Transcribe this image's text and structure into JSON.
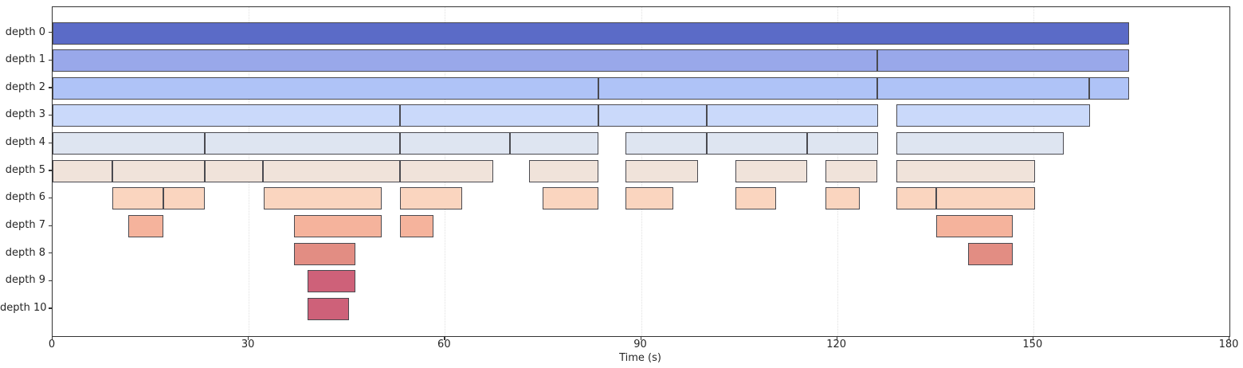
{
  "figure": {
    "background": "#ffffff",
    "spine_color": "#333333",
    "grid_color": "#e0e0e0",
    "bar_edge_color": "#4a4a50",
    "text_color": "#262626"
  },
  "chart_data": {
    "type": "bar",
    "subtype": "horizontal-span-flamegraph",
    "title": "",
    "xlabel": "Time (s)",
    "ylabel": "",
    "xlim": [
      0,
      180
    ],
    "x_ticks": [
      0,
      30,
      60,
      90,
      120,
      150,
      180
    ],
    "x_tick_labels": [
      "0",
      "30",
      "60",
      "90",
      "120",
      "150",
      "180"
    ],
    "grid": "faint dotted vertical gridlines at each x tick",
    "legend": "none",
    "categories": [
      "depth 0",
      "depth 1",
      "depth 2",
      "depth 3",
      "depth 4",
      "depth 5",
      "depth 6",
      "depth 7",
      "depth 8",
      "depth 9",
      "depth 10"
    ],
    "rows": [
      {
        "label": "depth 0",
        "color": "#5b6bc7",
        "segments": [
          [
            0,
            164.6
          ]
        ]
      },
      {
        "label": "depth 1",
        "color": "#99a8ea",
        "segments": [
          [
            0,
            126.1
          ],
          [
            126.1,
            164.6
          ]
        ]
      },
      {
        "label": "depth 2",
        "color": "#afc3f7",
        "segments": [
          [
            0,
            83.5
          ],
          [
            83.5,
            126.1
          ],
          [
            126.1,
            158.6
          ],
          [
            158.6,
            164.6
          ]
        ]
      },
      {
        "label": "depth 3",
        "color": "#cad9fa",
        "segments": [
          [
            0,
            53.1
          ],
          [
            53.1,
            83.5
          ],
          [
            83.5,
            100.1
          ],
          [
            100.1,
            126.2
          ],
          [
            129.0,
            158.7
          ]
        ]
      },
      {
        "label": "depth 4",
        "color": "#dee5f1",
        "segments": [
          [
            0,
            23.3
          ],
          [
            23.3,
            53.1
          ],
          [
            53.1,
            69.9
          ],
          [
            69.9,
            83.5
          ],
          [
            87.6,
            100.1
          ],
          [
            100.1,
            115.4
          ],
          [
            115.4,
            126.2
          ],
          [
            129.0,
            154.7
          ]
        ]
      },
      {
        "label": "depth 5",
        "color": "#f0e3da",
        "segments": [
          [
            0,
            9.1
          ],
          [
            9.1,
            23.3
          ],
          [
            23.3,
            32.2
          ],
          [
            32.2,
            53.1
          ],
          [
            53.1,
            67.4
          ],
          [
            72.9,
            83.5
          ],
          [
            87.6,
            98.7
          ],
          [
            104.5,
            115.4
          ],
          [
            118.2,
            126.1
          ],
          [
            129.0,
            150.3
          ]
        ]
      },
      {
        "label": "depth 6",
        "color": "#fad5bf",
        "segments": [
          [
            9.1,
            16.9
          ],
          [
            16.9,
            23.3
          ],
          [
            32.3,
            50.3
          ],
          [
            53.1,
            62.7
          ],
          [
            74.9,
            83.5
          ],
          [
            87.6,
            94.9
          ],
          [
            104.5,
            110.7
          ],
          [
            118.2,
            123.4
          ],
          [
            129.0,
            135.1
          ],
          [
            135.1,
            150.3
          ]
        ]
      },
      {
        "label": "depth 7",
        "color": "#f5b39c",
        "segments": [
          [
            11.6,
            16.9
          ],
          [
            36.9,
            50.3
          ],
          [
            53.1,
            58.3
          ],
          [
            135.2,
            146.8
          ]
        ]
      },
      {
        "label": "depth 8",
        "color": "#e28d83",
        "segments": [
          [
            36.9,
            46.3
          ],
          [
            140.0,
            146.8
          ]
        ]
      },
      {
        "label": "depth 9",
        "color": "#ce6179",
        "segments": [
          [
            39.0,
            46.3
          ]
        ]
      },
      {
        "label": "depth 10",
        "color": "#ce6179",
        "segments": [
          [
            39.0,
            45.3
          ]
        ]
      }
    ]
  }
}
